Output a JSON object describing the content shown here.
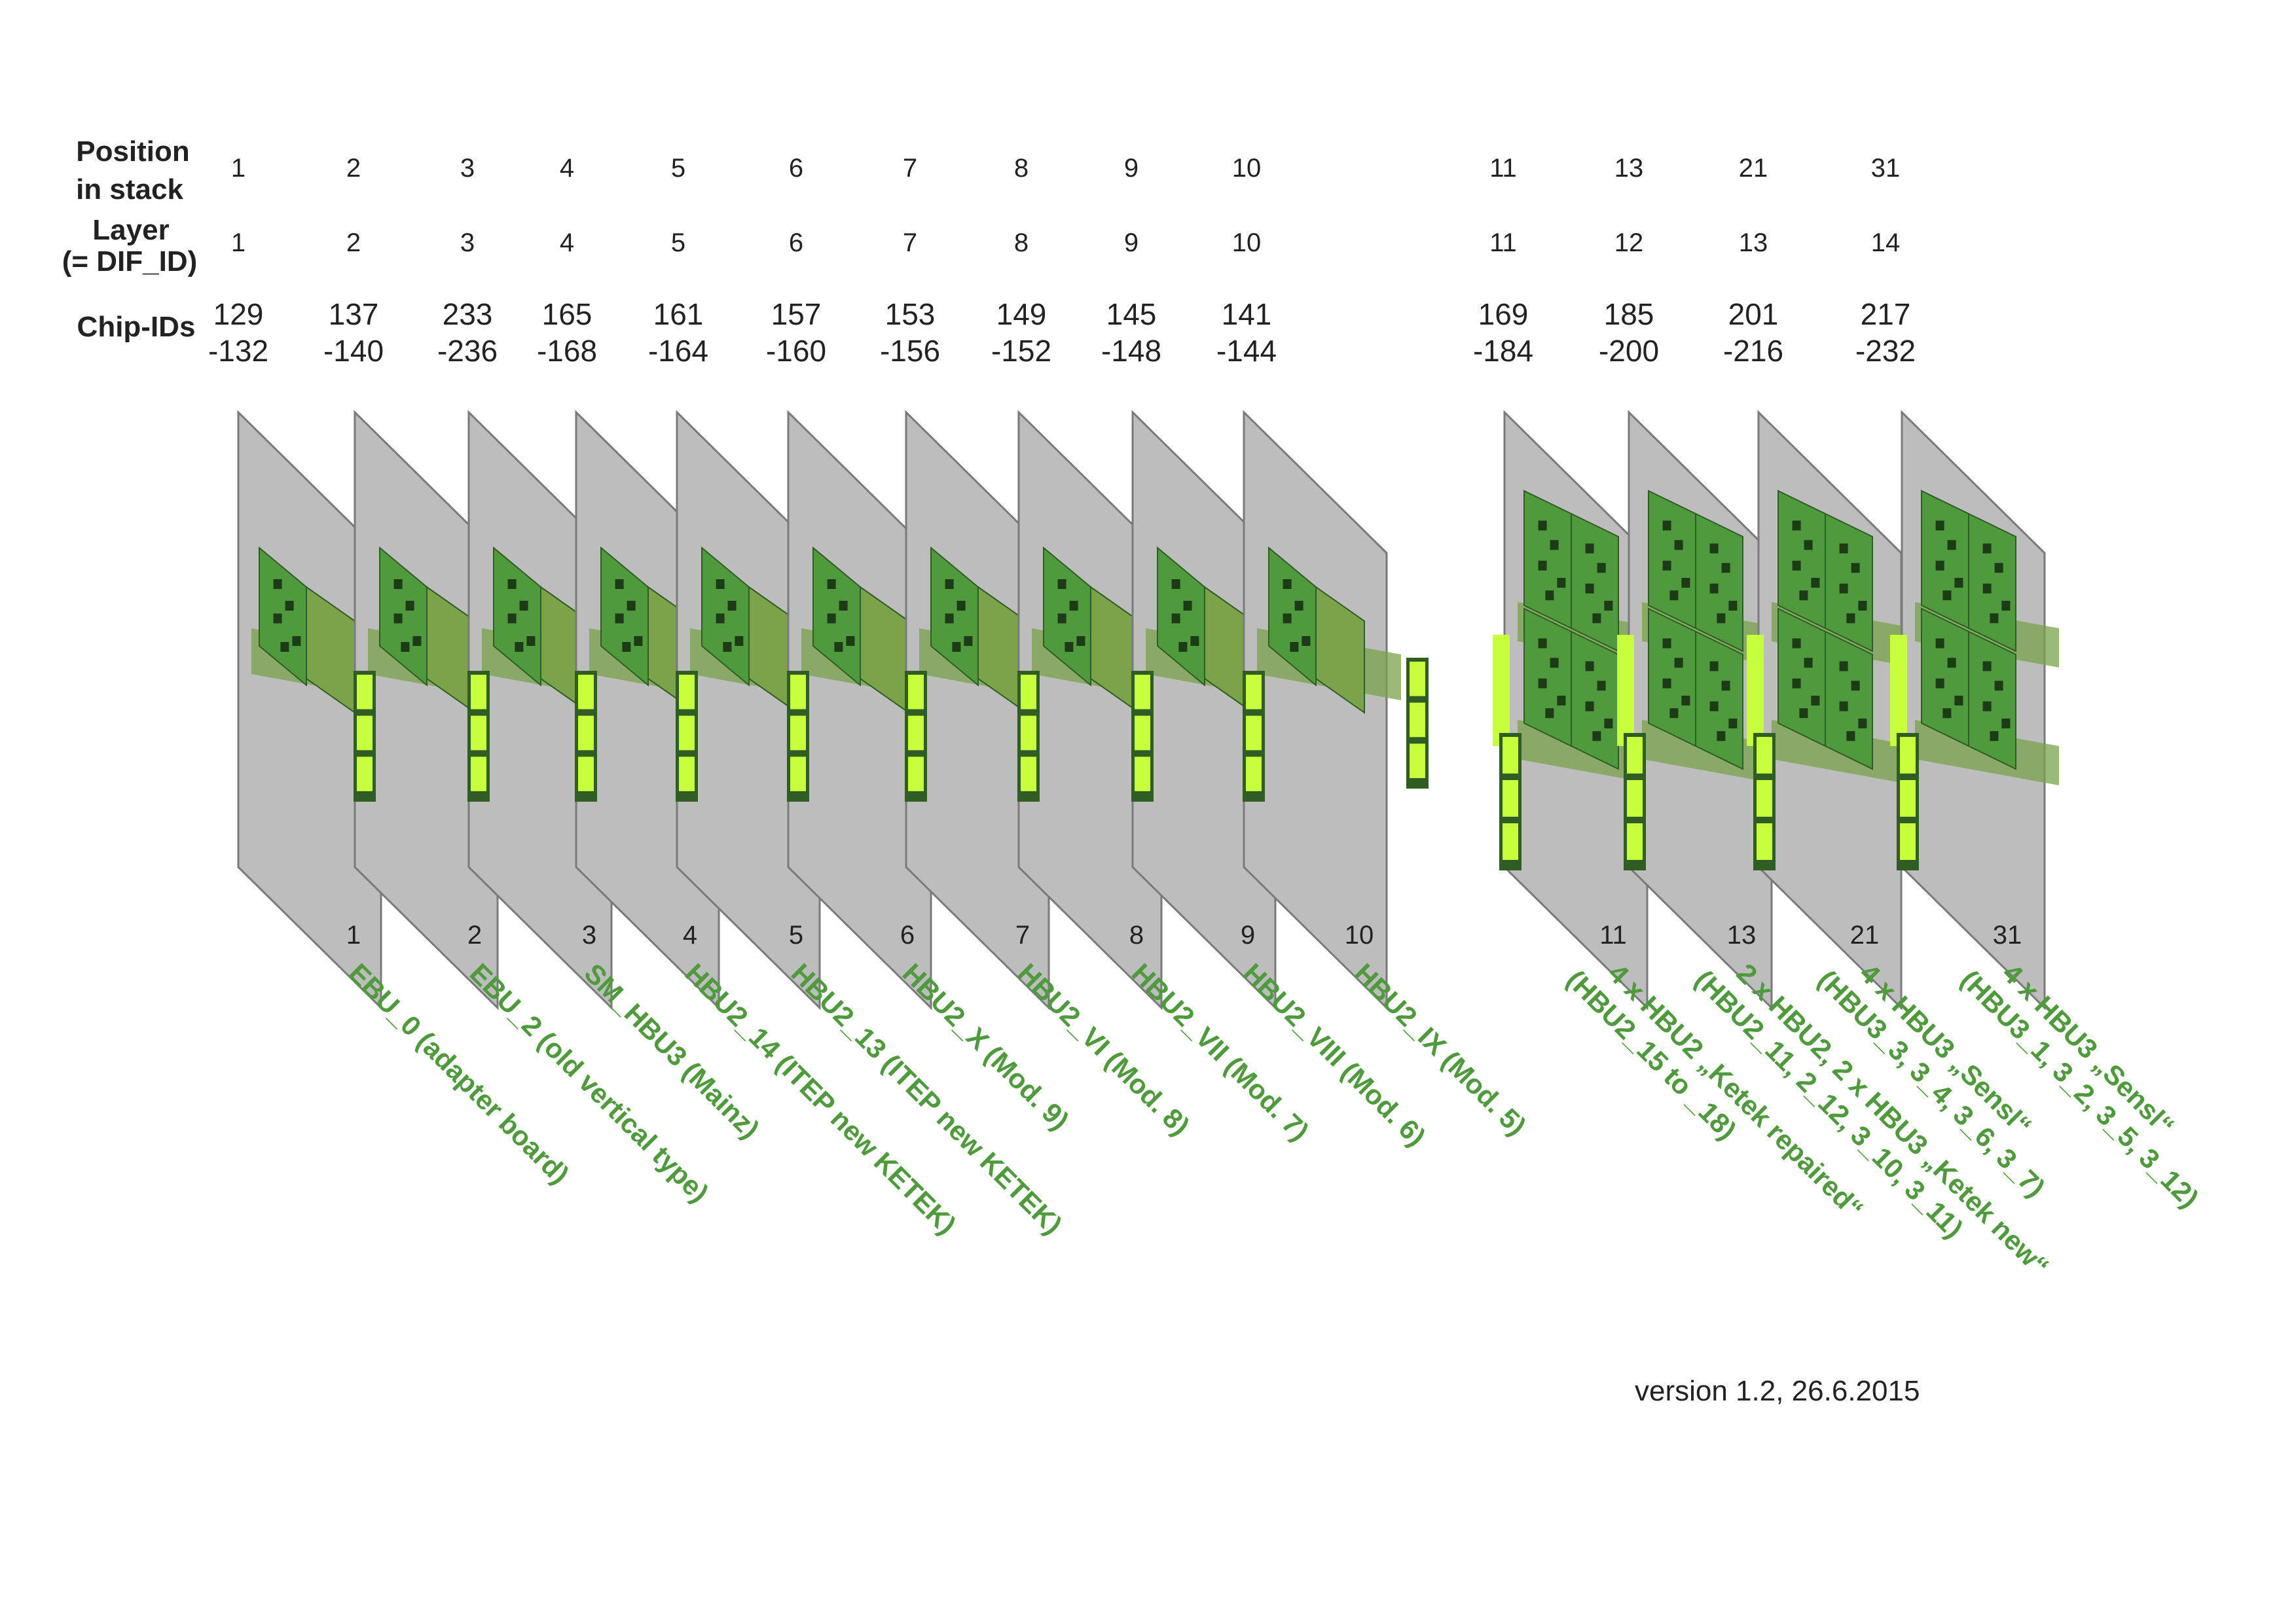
{
  "headers": {
    "position": [
      "Position",
      "in stack"
    ],
    "layer": [
      "Layer",
      "(= DIF_ID)"
    ],
    "chip_ids": "Chip-IDs"
  },
  "columns": [
    {
      "position": "1",
      "layer": "1",
      "chip_a": "129",
      "chip_b": "-132",
      "bottom": "1",
      "label": [
        "EBU_0 (adapter board)"
      ]
    },
    {
      "position": "2",
      "layer": "2",
      "chip_a": "137",
      "chip_b": "-140",
      "bottom": "2",
      "label": [
        "EBU_2 (old vertical type)"
      ]
    },
    {
      "position": "3",
      "layer": "3",
      "chip_a": "233",
      "chip_b": "-236",
      "bottom": "3",
      "label": [
        "SM_HBU3 (Mainz)"
      ]
    },
    {
      "position": "4",
      "layer": "4",
      "chip_a": "165",
      "chip_b": "-168",
      "bottom": "4",
      "label": [
        "HBU2_14 (ITEP new KETEK)"
      ]
    },
    {
      "position": "5",
      "layer": "5",
      "chip_a": "161",
      "chip_b": "-164",
      "bottom": "5",
      "label": [
        "HBU2_13 (ITEP new KETEK)"
      ]
    },
    {
      "position": "6",
      "layer": "6",
      "chip_a": "157",
      "chip_b": "-160",
      "bottom": "6",
      "label": [
        "HBU2_X (Mod. 9)"
      ]
    },
    {
      "position": "7",
      "layer": "7",
      "chip_a": "153",
      "chip_b": "-156",
      "bottom": "7",
      "label": [
        "HBU2_VI (Mod. 8)"
      ]
    },
    {
      "position": "8",
      "layer": "8",
      "chip_a": "149",
      "chip_b": "-152",
      "bottom": "8",
      "label": [
        "HBU2_VII (Mod. 7)"
      ]
    },
    {
      "position": "9",
      "layer": "9",
      "chip_a": "145",
      "chip_b": "-148",
      "bottom": "9",
      "label": [
        "HBU2_VIII (Mod. 6)"
      ]
    },
    {
      "position": "10",
      "layer": "10",
      "chip_a": "141",
      "chip_b": "-144",
      "bottom": "10",
      "label": [
        "HBU2_IX (Mod. 5)"
      ]
    },
    {
      "position": "11",
      "layer": "11",
      "chip_a": "169",
      "chip_b": "-184",
      "bottom": "11",
      "label": [
        "4 x HBU2 „Ketek repaired“",
        "(HBU2_15 to _18)"
      ]
    },
    {
      "position": "13",
      "layer": "12",
      "chip_a": "185",
      "chip_b": "-200",
      "bottom": "13",
      "label": [
        "2 x HBU2, 2 x HBU3 „Ketek new“",
        "(HBU2_11, 2_12, 3_10, 3_11)"
      ]
    },
    {
      "position": "21",
      "layer": "13",
      "chip_a": "201",
      "chip_b": "-216",
      "bottom": "21",
      "label": [
        "4 x HBU3 „Sensl“",
        "(HBU3_3, 3_4, 3_6, 3_7)"
      ]
    },
    {
      "position": "31",
      "layer": "14",
      "chip_a": "217",
      "chip_b": "-232",
      "bottom": "31",
      "label": [
        "4 x HBU3 „Sensl“",
        "(HBU3_1, 3_2, 3_5, 3_12)"
      ]
    }
  ],
  "version": "version 1.2, 26.6.2015",
  "colors": {
    "plate": "#bdbdbd",
    "plate_edge": "#7a7a7a",
    "board_dark": "#4f9a3c",
    "board_light": "#7aa34a",
    "connector_bright": "#c8ff3c",
    "label_green": "#4f9a3c"
  }
}
